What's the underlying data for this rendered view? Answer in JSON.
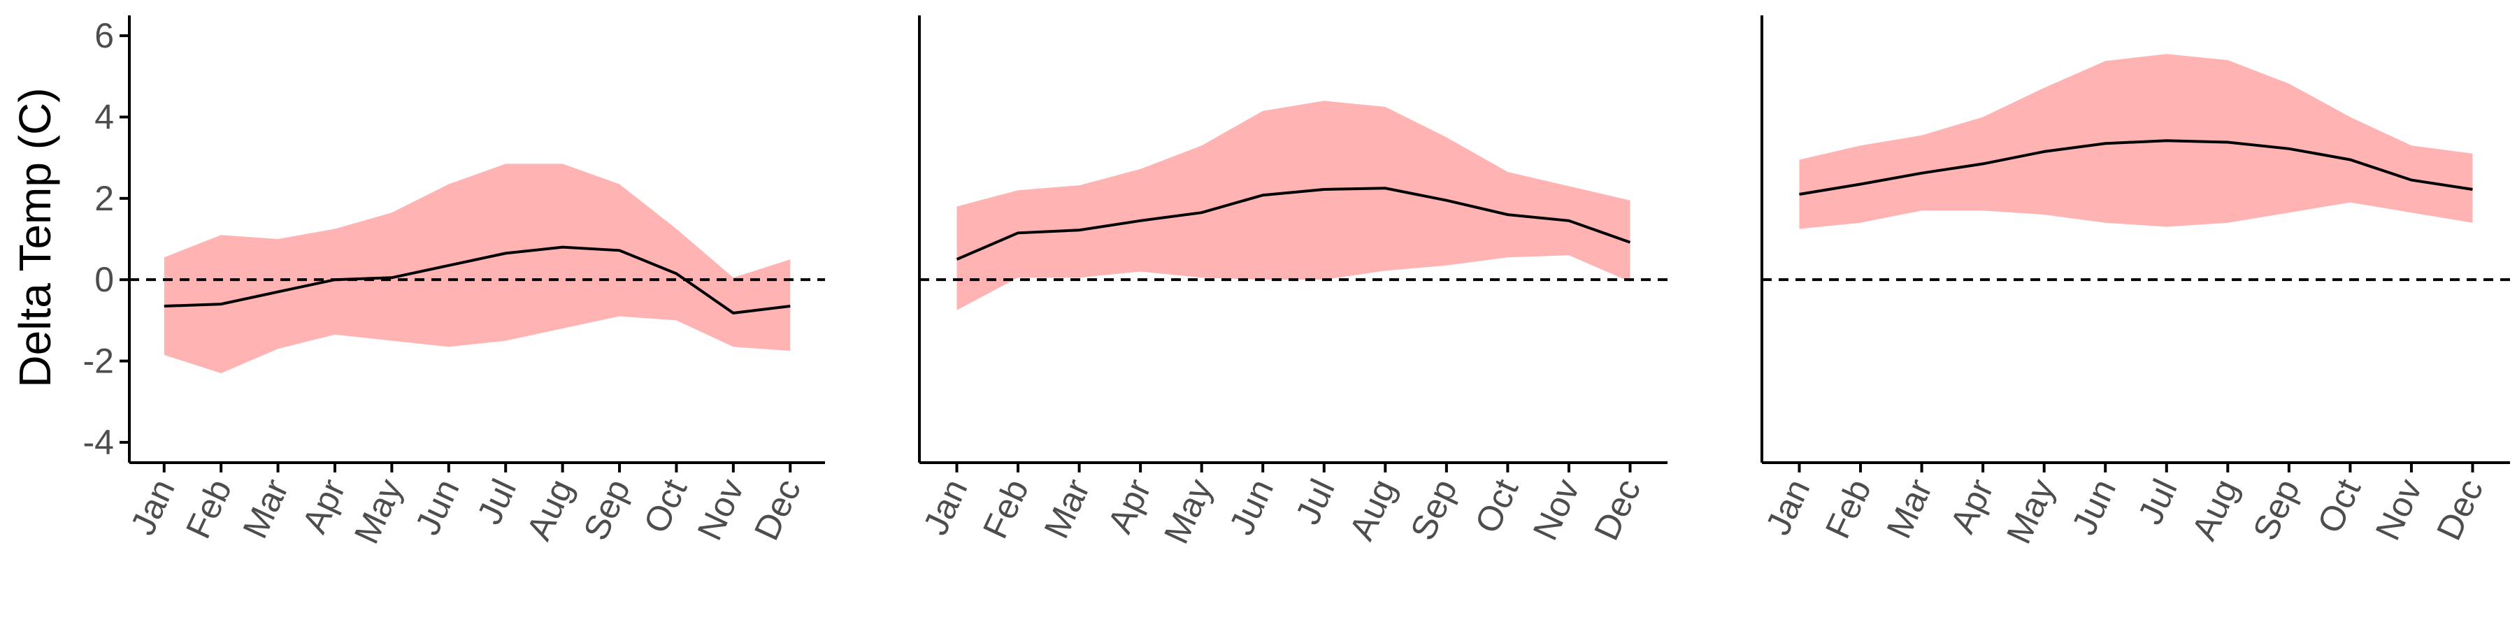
{
  "colors": {
    "band": "#ffb3b3",
    "line": "#000000",
    "axis": "#000000",
    "tick_text": "#4d4d4d",
    "zero_line": "#000000"
  },
  "chart_data": {
    "type": "line",
    "layout": "three panels side by side, shared y axis",
    "ylabel": "Delta Temp (C)",
    "ylim": [
      -4.5,
      6.5
    ],
    "yticks": [
      -4,
      -2,
      0,
      2,
      4,
      6
    ],
    "ytick_labels": [
      "-4",
      "-2",
      "0",
      "2",
      "4",
      "6"
    ],
    "categories": [
      "Jan",
      "Feb",
      "Mar",
      "Apr",
      "May",
      "Jun",
      "Jul",
      "Aug",
      "Sep",
      "Oct",
      "Nov",
      "Dec"
    ],
    "reference_line": {
      "y": 0,
      "style": "dashed"
    },
    "grid": false,
    "legend": "none",
    "panels": [
      {
        "mean": [
          -0.65,
          -0.6,
          -0.3,
          0.0,
          0.05,
          0.35,
          0.65,
          0.8,
          0.72,
          0.15,
          -0.82,
          -0.65
        ],
        "upper": [
          0.55,
          1.1,
          1.0,
          1.25,
          1.65,
          2.35,
          2.85,
          2.85,
          2.35,
          1.25,
          0.05,
          0.5
        ],
        "lower": [
          -1.85,
          -2.3,
          -1.7,
          -1.35,
          -1.5,
          -1.65,
          -1.5,
          -1.2,
          -0.9,
          -1.0,
          -1.65,
          -1.75
        ]
      },
      {
        "mean": [
          0.5,
          1.15,
          1.22,
          1.45,
          1.65,
          2.08,
          2.22,
          2.25,
          1.95,
          1.6,
          1.45,
          0.92
        ],
        "upper": [
          1.8,
          2.2,
          2.32,
          2.72,
          3.3,
          4.15,
          4.4,
          4.25,
          3.5,
          2.65,
          2.3,
          1.95
        ],
        "lower": [
          -0.75,
          0.05,
          0.05,
          0.2,
          0.05,
          0.0,
          0.0,
          0.22,
          0.35,
          0.55,
          0.6,
          -0.05
        ]
      },
      {
        "mean": [
          2.1,
          2.35,
          2.62,
          2.85,
          3.15,
          3.35,
          3.42,
          3.38,
          3.22,
          2.95,
          2.45,
          2.22
        ],
        "upper": [
          2.95,
          3.3,
          3.55,
          4.0,
          4.72,
          5.38,
          5.55,
          5.4,
          4.82,
          4.0,
          3.3,
          3.1
        ],
        "lower": [
          1.25,
          1.4,
          1.7,
          1.7,
          1.6,
          1.4,
          1.3,
          1.4,
          1.65,
          1.9,
          1.65,
          1.4
        ]
      }
    ]
  }
}
